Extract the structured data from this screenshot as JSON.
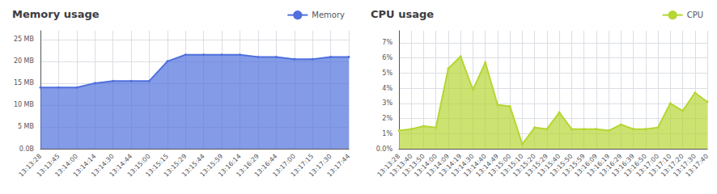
{
  "chart_data": [
    {
      "type": "area",
      "title": "Memory usage",
      "categories": [
        "13:13:28",
        "13:13:45",
        "13:14:00",
        "13:14:14",
        "13:14:30",
        "13:14:44",
        "13:15:00",
        "13:15:15",
        "13:15:29",
        "13:15:44",
        "13:15:59",
        "13:16:14",
        "13:16:29",
        "13:16:44",
        "13:17:00",
        "13:17:15",
        "13:17:30",
        "13:17:44"
      ],
      "series": [
        {
          "name": "Memory",
          "values": [
            14.0,
            14.0,
            14.0,
            15.0,
            15.5,
            15.5,
            15.5,
            20.0,
            21.5,
            21.5,
            21.5,
            21.5,
            21.0,
            21.0,
            20.5,
            20.5,
            21.0,
            21.0
          ]
        }
      ],
      "ylim": [
        0,
        27
      ],
      "yticks": [
        {
          "value": 0,
          "label": "0.0B"
        },
        {
          "value": 5,
          "label": "5 MB"
        },
        {
          "value": 10,
          "label": "10 MB"
        },
        {
          "value": 15,
          "label": "15 MB"
        },
        {
          "value": 20,
          "label": "20 MB"
        },
        {
          "value": 25,
          "label": "25 MB"
        }
      ],
      "grid": true,
      "legend": "top"
    },
    {
      "type": "area",
      "title": "CPU usage",
      "categories": [
        "13:13:28",
        "13:13:40",
        "13:13:50",
        "13:14:00",
        "13:14:09",
        "13:14:19",
        "13:14:30",
        "13:14:40",
        "13:14:49",
        "13:15:00",
        "13:15:10",
        "13:15:20",
        "13:15:29",
        "13:15:40",
        "13:15:50",
        "13:15:59",
        "13:16:09",
        "13:16:19",
        "13:16:29",
        "13:16:39",
        "13:16:50",
        "13:17:00",
        "13:17:10",
        "13:17:20",
        "13:17:30",
        "13:17:40"
      ],
      "series": [
        {
          "name": "CPU",
          "values": [
            1.2,
            1.3,
            1.5,
            1.4,
            5.3,
            6.1,
            3.9,
            5.7,
            2.9,
            2.8,
            0.3,
            1.4,
            1.3,
            2.4,
            1.3,
            1.3,
            1.3,
            1.2,
            1.6,
            1.3,
            1.3,
            1.4,
            3.0,
            2.5,
            3.7,
            3.1
          ]
        }
      ],
      "ylim": [
        0,
        7.8
      ],
      "yticks": [
        {
          "value": 0,
          "label": "0.0%"
        },
        {
          "value": 1,
          "label": "1%"
        },
        {
          "value": 2,
          "label": "2%"
        },
        {
          "value": 3,
          "label": "3%"
        },
        {
          "value": 4,
          "label": "4%"
        },
        {
          "value": 5,
          "label": "5%"
        },
        {
          "value": 6,
          "label": "6%"
        },
        {
          "value": 7,
          "label": "7%"
        }
      ],
      "grid": true,
      "legend": "top"
    }
  ]
}
